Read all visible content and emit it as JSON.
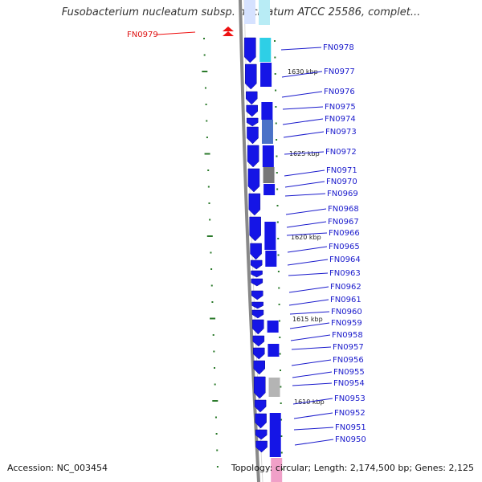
{
  "title": "Fusobacterium nucleatum subsp. nucleatum ATCC 25586, complet...",
  "footer": {
    "accession": "Accession: NC_003454",
    "topology": "Topology: circular; Length: 2,174,500 bp; Genes: 2,125"
  },
  "colors": {
    "gene": "#1515e6",
    "backbone": "#888888",
    "tick": "#2b7a2b",
    "highlight": "#ee1111",
    "leader": "#1a1acc"
  },
  "scale_labels": [
    "1630 kbp",
    "1625 kbp",
    "1620 kbp",
    "1615 kbp",
    "1610 kbp"
  ],
  "highlighted_gene": "FN0979",
  "gene_labels": [
    "FN0978",
    "FN0977",
    "FN0976",
    "FN0975",
    "FN0974",
    "FN0973",
    "FN0972",
    "FN0971",
    "FN0970",
    "FN0969",
    "FN0968",
    "FN0967",
    "FN0966",
    "FN0965",
    "FN0964",
    "FN0963",
    "FN0962",
    "FN0961",
    "FN0960",
    "FN0959",
    "FN0958",
    "FN0957",
    "FN0956",
    "FN0955",
    "FN0954",
    "FN0953",
    "FN0952",
    "FN0951",
    "FN0950"
  ]
}
